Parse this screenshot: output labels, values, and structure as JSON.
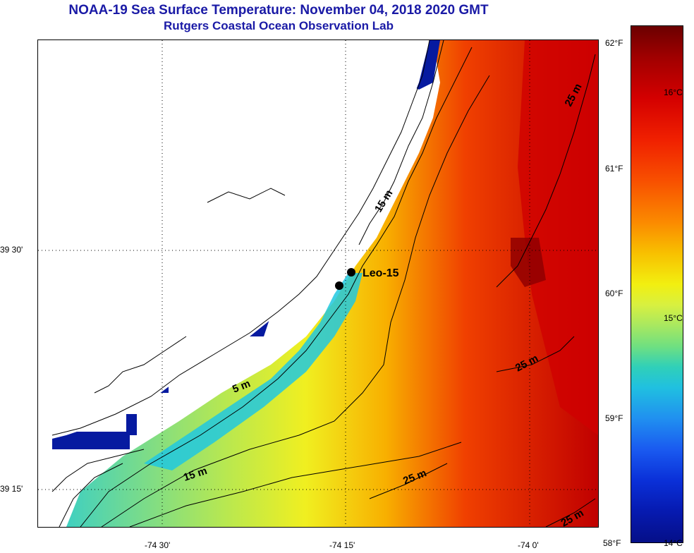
{
  "title": "NOAA-19 Sea Surface Temperature:  November 04, 2018 2020 GMT",
  "subtitle": "Rutgers Coastal Ocean Observation Lab",
  "station": {
    "name": "Leo-15"
  },
  "depth_labels": [
    "5 m",
    "15 m",
    "15 m",
    "25 m",
    "25 m",
    "25 m",
    "25 m"
  ],
  "longitude_labels": [
    "-74 30'",
    "-74 15'",
    "-74 0'"
  ],
  "latitude_labels": [
    "39 30'",
    "39 15'"
  ],
  "colorbar": {
    "fahrenheit": [
      "62°F",
      "61°F",
      "60°F",
      "59°F",
      "58°F"
    ],
    "celsius": [
      "16°C",
      "15°C",
      "14°C"
    ],
    "colors": {
      "warm": "#a00000",
      "mid": "#f2ef10",
      "cool": "#20c0e0",
      "cold": "#050f88"
    }
  }
}
